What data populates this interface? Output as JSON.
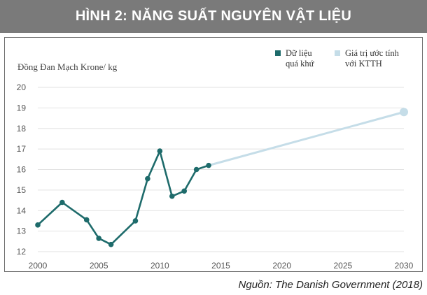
{
  "banner": {
    "title": "HÌNH 2:  NĂNG SUẤT NGUYÊN VẬT LIỆU"
  },
  "source": "Nguồn: The Danish Government (2018)",
  "colors": {
    "historical": "#1e6b6b",
    "projection": "#c5dde8",
    "banner": "#7a7a7a"
  },
  "chart_data": {
    "type": "line",
    "ylabel": "Đồng Đan Mạch Krone/ kg",
    "xlim": [
      2000,
      2030
    ],
    "ylim": [
      12,
      20
    ],
    "x_ticks": [
      2000,
      2005,
      2010,
      2015,
      2020,
      2025,
      2030
    ],
    "y_ticks": [
      12,
      13,
      14,
      15,
      16,
      17,
      18,
      19,
      20
    ],
    "grid": true,
    "legend_position": "top-right",
    "series": [
      {
        "name": "Dữ liệu quá khứ",
        "legend_lines": [
          "Dữ liệu",
          "quá khứ"
        ],
        "x": [
          2000,
          2002,
          2004,
          2005,
          2006,
          2008,
          2009,
          2010,
          2011,
          2012,
          2013,
          2014
        ],
        "y": [
          13.3,
          14.4,
          13.55,
          12.65,
          12.35,
          13.5,
          15.55,
          16.9,
          14.7,
          14.95,
          16.0,
          16.2
        ]
      },
      {
        "name": "Giá trị ước tính với KTTH",
        "legend_lines": [
          "Giá trị ước tính",
          "với KTTH"
        ],
        "x": [
          2014,
          2030
        ],
        "y": [
          16.2,
          18.8
        ]
      }
    ]
  }
}
